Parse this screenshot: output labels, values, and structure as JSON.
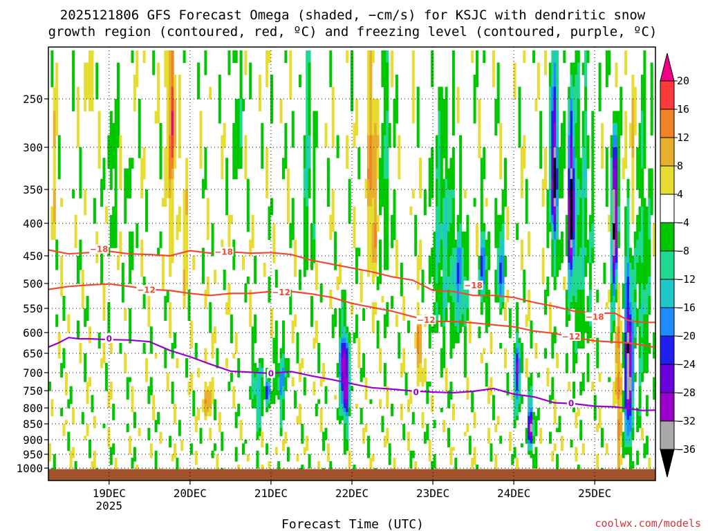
{
  "title_lines": [
    "2025121806 GFS Forecast Omega (shaded, −cm/s) for KSJC with dendritic snow",
    "growth region (contoured, red, ºC) and freezing level (contoured, purple, ºC)"
  ],
  "credit": "coolwx.com/models",
  "chart_data": {
    "type": "heatmap",
    "xlabel": "Forecast Time (UTC)",
    "ylabel": "",
    "x_ticks": [
      {
        "label": "19DEC",
        "sub": "2025",
        "hour": 18
      },
      {
        "label": "20DEC",
        "sub": "",
        "hour": 42
      },
      {
        "label": "21DEC",
        "sub": "",
        "hour": 66
      },
      {
        "label": "22DEC",
        "sub": "",
        "hour": 90
      },
      {
        "label": "23DEC",
        "sub": "",
        "hour": 114
      },
      {
        "label": "24DEC",
        "sub": "",
        "hour": 138
      },
      {
        "label": "25DEC",
        "sub": "",
        "hour": 162
      }
    ],
    "xlim_hours": [
      0,
      180
    ],
    "y_ticks": [
      250,
      300,
      350,
      400,
      450,
      500,
      550,
      600,
      650,
      700,
      750,
      800,
      850,
      900,
      950,
      1000
    ],
    "ylim_hPa": [
      200,
      1010
    ],
    "grid": true,
    "colorbar": {
      "levels": [
        -36,
        -32,
        -28,
        -24,
        -20,
        -16,
        -12,
        -8,
        -4,
        4,
        8,
        12,
        16,
        20
      ],
      "tick_labels": [
        "20",
        "16",
        "12",
        "8",
        "4",
        "−4",
        "−8",
        "−12",
        "−16",
        "−20",
        "−24",
        "−28",
        "−32",
        "−36"
      ],
      "colors": [
        "#000000",
        "#a9a9a9",
        "#9a00cc",
        "#6a00dd",
        "#2020ee",
        "#1e8cff",
        "#20c8c8",
        "#20d890",
        "#00c800",
        "#ffffff",
        "#e6dc32",
        "#e6af2d",
        "#f08228",
        "#fa3c3c",
        "#f00082"
      ]
    },
    "omega_features": [
      {
        "t": 1.5,
        "p": 330,
        "w": 1.2,
        "h": 90,
        "v": 5
      },
      {
        "t": 12,
        "p": 250,
        "w": 1.5,
        "h": 60,
        "v": 5
      },
      {
        "t": 19,
        "p": 330,
        "w": 1.2,
        "h": 110,
        "v": -7
      },
      {
        "t": 24,
        "p": 420,
        "w": 1.2,
        "h": 120,
        "v": -6
      },
      {
        "t": 36,
        "p": 300,
        "w": 0.9,
        "h": 150,
        "v": 12
      },
      {
        "t": 37,
        "p": 260,
        "w": 0.6,
        "h": 60,
        "v": 18
      },
      {
        "t": 40,
        "p": 420,
        "w": 1.5,
        "h": 120,
        "v": 5
      },
      {
        "t": 47,
        "p": 780,
        "w": 1.1,
        "h": 70,
        "v": 12
      },
      {
        "t": 56,
        "p": 260,
        "w": 1.5,
        "h": 110,
        "v": -7
      },
      {
        "t": 62,
        "p": 760,
        "w": 1.5,
        "h": 100,
        "v": -15
      },
      {
        "t": 65,
        "p": 750,
        "w": 0.8,
        "h": 40,
        "v": -26
      },
      {
        "t": 69,
        "p": 720,
        "w": 1.5,
        "h": 90,
        "v": -16
      },
      {
        "t": 77,
        "p": 330,
        "w": 1.6,
        "h": 150,
        "v": -9
      },
      {
        "t": 88,
        "p": 730,
        "w": 1.2,
        "h": 110,
        "v": -34
      },
      {
        "t": 87,
        "p": 650,
        "w": 1.6,
        "h": 90,
        "v": -10
      },
      {
        "t": 96,
        "p": 330,
        "w": 1.4,
        "h": 150,
        "v": 14
      },
      {
        "t": 100,
        "p": 320,
        "w": 1.5,
        "h": 200,
        "v": -8
      },
      {
        "t": 110,
        "p": 640,
        "w": 0.8,
        "h": 80,
        "v": 17
      },
      {
        "t": 117,
        "p": 430,
        "w": 3.5,
        "h": 180,
        "v": -11
      },
      {
        "t": 122,
        "p": 500,
        "w": 2.0,
        "h": 90,
        "v": -17
      },
      {
        "t": 129,
        "p": 480,
        "w": 1.0,
        "h": 70,
        "v": -22
      },
      {
        "t": 134,
        "p": 470,
        "w": 1.1,
        "h": 70,
        "v": -22
      },
      {
        "t": 139,
        "p": 700,
        "w": 1.0,
        "h": 100,
        "v": -25
      },
      {
        "t": 143,
        "p": 860,
        "w": 0.8,
        "h": 80,
        "v": -35
      },
      {
        "t": 150,
        "p": 330,
        "w": 1.1,
        "h": 110,
        "v": -37
      },
      {
        "t": 155,
        "p": 380,
        "w": 1.0,
        "h": 110,
        "v": -37
      },
      {
        "t": 168,
        "p": 380,
        "w": 1.0,
        "h": 160,
        "v": -38
      },
      {
        "t": 168,
        "p": 240,
        "w": 0.8,
        "h": 70,
        "v": 19
      },
      {
        "t": 172,
        "p": 680,
        "w": 1.2,
        "h": 220,
        "v": -38
      },
      {
        "t": 169,
        "p": 700,
        "w": 0.8,
        "h": 260,
        "v": 17
      },
      {
        "t": 173,
        "p": 300,
        "w": 1.5,
        "h": 120,
        "v": 8
      },
      {
        "t": 158,
        "p": 420,
        "w": 3.5,
        "h": 250,
        "v": -9
      },
      {
        "t": 176,
        "p": 500,
        "w": 2.5,
        "h": 300,
        "v": -9
      }
    ],
    "contours": [
      {
        "name": "−18",
        "level": -18,
        "color": "#f04a2e",
        "label_points": [
          [
            15,
            440
          ],
          [
            52,
            444
          ],
          [
            126,
            504
          ],
          [
            162,
            568
          ]
        ],
        "points": [
          [
            0,
            441
          ],
          [
            6,
            447
          ],
          [
            12,
            445
          ],
          [
            18,
            443
          ],
          [
            24,
            447
          ],
          [
            30,
            448
          ],
          [
            36,
            450
          ],
          [
            42,
            442
          ],
          [
            48,
            446
          ],
          [
            54,
            444
          ],
          [
            60,
            446
          ],
          [
            66,
            445
          ],
          [
            72,
            448
          ],
          [
            78,
            458
          ],
          [
            84,
            465
          ],
          [
            90,
            472
          ],
          [
            96,
            479
          ],
          [
            102,
            488
          ],
          [
            108,
            494
          ],
          [
            114,
            514
          ],
          [
            120,
            516
          ],
          [
            126,
            524
          ],
          [
            132,
            524
          ],
          [
            138,
            528
          ],
          [
            144,
            538
          ],
          [
            150,
            546
          ],
          [
            156,
            556
          ],
          [
            162,
            560
          ],
          [
            168,
            560
          ],
          [
            172,
            575
          ],
          [
            176,
            579
          ],
          [
            180,
            579
          ]
        ]
      },
      {
        "name": "−12",
        "level": -12,
        "color": "#f04a2e",
        "label_points": [
          [
            29,
            513
          ],
          [
            69,
            518
          ],
          [
            112,
            574
          ],
          [
            155,
            610
          ]
        ],
        "points": [
          [
            0,
            512
          ],
          [
            6,
            506
          ],
          [
            12,
            503
          ],
          [
            18,
            501
          ],
          [
            24,
            506
          ],
          [
            30,
            512
          ],
          [
            36,
            514
          ],
          [
            42,
            520
          ],
          [
            48,
            524
          ],
          [
            54,
            520
          ],
          [
            60,
            520
          ],
          [
            66,
            516
          ],
          [
            72,
            516
          ],
          [
            78,
            521
          ],
          [
            84,
            528
          ],
          [
            90,
            540
          ],
          [
            96,
            548
          ],
          [
            102,
            556
          ],
          [
            108,
            567
          ],
          [
            114,
            577
          ],
          [
            120,
            577
          ],
          [
            126,
            580
          ],
          [
            132,
            584
          ],
          [
            138,
            588
          ],
          [
            144,
            597
          ],
          [
            150,
            602
          ],
          [
            156,
            612
          ],
          [
            162,
            620
          ],
          [
            168,
            623
          ],
          [
            172,
            625
          ],
          [
            176,
            630
          ],
          [
            180,
            636
          ]
        ]
      },
      {
        "name": "0",
        "level": 0,
        "color": "#9a00cc",
        "label_points": [
          [
            18,
            615
          ],
          [
            66,
            703
          ],
          [
            109,
            755
          ],
          [
            155,
            787
          ]
        ],
        "points": [
          [
            0,
            635
          ],
          [
            3,
            625
          ],
          [
            6,
            612
          ],
          [
            9,
            615
          ],
          [
            12,
            615
          ],
          [
            18,
            617
          ],
          [
            24,
            618
          ],
          [
            30,
            622
          ],
          [
            36,
            643
          ],
          [
            42,
            659
          ],
          [
            48,
            678
          ],
          [
            54,
            696
          ],
          [
            60,
            699
          ],
          [
            66,
            702
          ],
          [
            72,
            697
          ],
          [
            78,
            709
          ],
          [
            84,
            719
          ],
          [
            90,
            731
          ],
          [
            96,
            742
          ],
          [
            102,
            746
          ],
          [
            108,
            751
          ],
          [
            114,
            754
          ],
          [
            120,
            756
          ],
          [
            126,
            752
          ],
          [
            132,
            744
          ],
          [
            138,
            760
          ],
          [
            144,
            768
          ],
          [
            150,
            785
          ],
          [
            156,
            788
          ],
          [
            162,
            795
          ],
          [
            168,
            797
          ],
          [
            172,
            802
          ],
          [
            176,
            808
          ],
          [
            180,
            807
          ]
        ]
      }
    ]
  }
}
